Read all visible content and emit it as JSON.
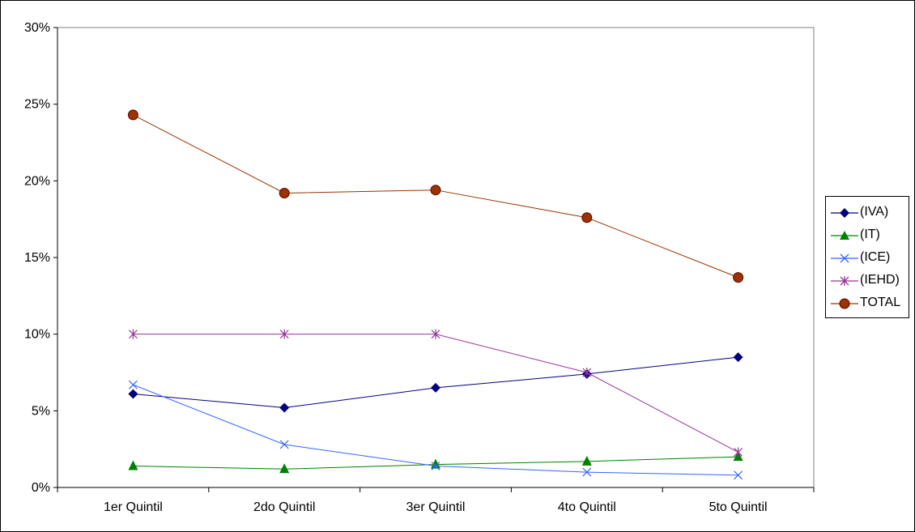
{
  "chart_data": {
    "type": "line",
    "categories": [
      "1er Quintil",
      "2do Quintil",
      "3er Quintil",
      "4to Quintil",
      "5to Quintil"
    ],
    "y_ticks": [
      "0%",
      "5%",
      "10%",
      "15%",
      "20%",
      "25%",
      "30%"
    ],
    "ylim": [
      0,
      30
    ],
    "grid": false,
    "legend_position": "right",
    "series": [
      {
        "name": "(IVA)",
        "values": [
          6.1,
          5.2,
          6.5,
          7.4,
          8.5
        ],
        "color": "#000080",
        "marker": "diamond"
      },
      {
        "name": "(IT)",
        "values": [
          1.4,
          1.2,
          1.5,
          1.7,
          2.0
        ],
        "color": "#008000",
        "marker": "triangle"
      },
      {
        "name": "(ICE)",
        "values": [
          6.7,
          2.8,
          1.4,
          1.0,
          0.8
        ],
        "color": "#3366FF",
        "marker": "x"
      },
      {
        "name": "(IEHD)",
        "values": [
          10.0,
          10.0,
          10.0,
          7.5,
          2.3
        ],
        "color": "#993399",
        "marker": "star"
      },
      {
        "name": "TOTAL",
        "values": [
          24.3,
          19.2,
          19.4,
          17.6,
          13.7
        ],
        "color": "#993300",
        "marker": "circle"
      }
    ]
  }
}
